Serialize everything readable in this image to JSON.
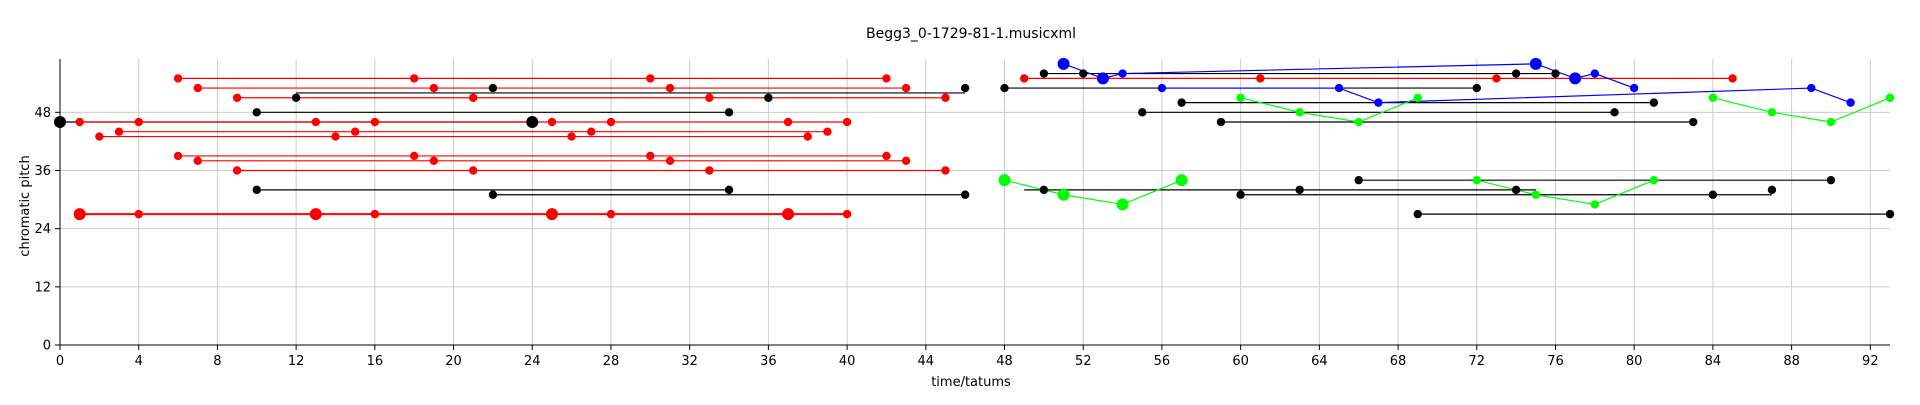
{
  "chart_data": {
    "type": "scatter",
    "title": "Begg3_0-1729-81-1.musicxml",
    "xlabel": "time/tatums",
    "ylabel": "chromatic pitch",
    "xlim": [
      0,
      93
    ],
    "ylim": [
      0,
      59
    ],
    "xticks": [
      0,
      4,
      8,
      12,
      16,
      20,
      24,
      28,
      32,
      36,
      40,
      44,
      48,
      52,
      56,
      60,
      64,
      68,
      72,
      76,
      80,
      84,
      88,
      92
    ],
    "yticks": [
      0,
      12,
      24,
      36,
      48
    ],
    "grid": true,
    "legend": "none",
    "colors": {
      "red": "#ff0000",
      "black": "#000000",
      "blue": "#0000ff",
      "green": "#00ff00",
      "grid": "#cccccc"
    },
    "series": [
      {
        "color": "red",
        "kind": "segment",
        "x": [
          6,
          42
        ],
        "y": [
          55,
          55
        ],
        "points": [
          {
            "x": 6,
            "y": 55,
            "s": 1
          },
          {
            "x": 18,
            "y": 55,
            "s": 1
          },
          {
            "x": 30,
            "y": 55,
            "s": 1
          },
          {
            "x": 42,
            "y": 55,
            "s": 1
          }
        ]
      },
      {
        "color": "red",
        "kind": "segment",
        "x": [
          7,
          43
        ],
        "y": [
          53,
          53
        ],
        "points": [
          {
            "x": 7,
            "y": 53,
            "s": 1
          },
          {
            "x": 19,
            "y": 53,
            "s": 1
          },
          {
            "x": 31,
            "y": 53,
            "s": 1
          },
          {
            "x": 43,
            "y": 53,
            "s": 1
          }
        ]
      },
      {
        "color": "red",
        "kind": "segment",
        "x": [
          9,
          45
        ],
        "y": [
          51,
          51
        ],
        "points": [
          {
            "x": 9,
            "y": 51,
            "s": 1
          },
          {
            "x": 21,
            "y": 51,
            "s": 1
          },
          {
            "x": 33,
            "y": 51,
            "s": 1
          },
          {
            "x": 45,
            "y": 51,
            "s": 1
          }
        ]
      },
      {
        "color": "black",
        "kind": "segment",
        "x": [
          12,
          46
        ],
        "y": [
          52,
          52
        ],
        "points": [
          {
            "x": 12,
            "y": 51,
            "s": 1
          },
          {
            "x": 22,
            "y": 53,
            "s": 1
          },
          {
            "x": 36,
            "y": 51,
            "s": 1
          },
          {
            "x": 46,
            "y": 53,
            "s": 1
          }
        ]
      },
      {
        "color": "black",
        "kind": "segment",
        "x": [
          10,
          34
        ],
        "y": [
          48,
          48
        ],
        "points": [
          {
            "x": 10,
            "y": 48,
            "s": 1
          },
          {
            "x": 34,
            "y": 48,
            "s": 1
          }
        ]
      },
      {
        "color": "black",
        "kind": "segment",
        "x": [
          0,
          24
        ],
        "y": [
          46,
          46
        ],
        "points": [
          {
            "x": 0,
            "y": 46,
            "s": 2
          },
          {
            "x": 24,
            "y": 46,
            "s": 2
          }
        ]
      },
      {
        "color": "red",
        "kind": "segment",
        "x": [
          1,
          40
        ],
        "y": [
          46,
          46
        ],
        "points": [
          {
            "x": 1,
            "y": 46,
            "s": 1
          },
          {
            "x": 4,
            "y": 46,
            "s": 1
          },
          {
            "x": 13,
            "y": 46,
            "s": 1
          },
          {
            "x": 16,
            "y": 46,
            "s": 1
          },
          {
            "x": 25,
            "y": 46,
            "s": 1
          },
          {
            "x": 28,
            "y": 46,
            "s": 1
          },
          {
            "x": 37,
            "y": 46,
            "s": 1
          },
          {
            "x": 40,
            "y": 46,
            "s": 1
          }
        ]
      },
      {
        "color": "red",
        "kind": "segment",
        "x": [
          3,
          39
        ],
        "y": [
          44,
          44
        ],
        "points": [
          {
            "x": 3,
            "y": 44,
            "s": 1
          },
          {
            "x": 15,
            "y": 44,
            "s": 1
          },
          {
            "x": 27,
            "y": 44,
            "s": 1
          },
          {
            "x": 39,
            "y": 44,
            "s": 1
          }
        ]
      },
      {
        "color": "red",
        "kind": "segment",
        "x": [
          2,
          38
        ],
        "y": [
          43,
          43
        ],
        "points": [
          {
            "x": 2,
            "y": 43,
            "s": 1
          },
          {
            "x": 14,
            "y": 43,
            "s": 1
          },
          {
            "x": 26,
            "y": 43,
            "s": 1
          },
          {
            "x": 38,
            "y": 43,
            "s": 1
          }
        ]
      },
      {
        "color": "red",
        "kind": "segment",
        "x": [
          6,
          42
        ],
        "y": [
          39,
          39
        ],
        "points": [
          {
            "x": 6,
            "y": 39,
            "s": 1
          },
          {
            "x": 18,
            "y": 39,
            "s": 1
          },
          {
            "x": 30,
            "y": 39,
            "s": 1
          },
          {
            "x": 42,
            "y": 39,
            "s": 1
          }
        ]
      },
      {
        "color": "red",
        "kind": "segment",
        "x": [
          7,
          43
        ],
        "y": [
          38,
          38
        ],
        "points": [
          {
            "x": 7,
            "y": 38,
            "s": 1
          },
          {
            "x": 19,
            "y": 38,
            "s": 1
          },
          {
            "x": 31,
            "y": 38,
            "s": 1
          },
          {
            "x": 43,
            "y": 38,
            "s": 1
          }
        ]
      },
      {
        "color": "red",
        "kind": "segment",
        "x": [
          9,
          45
        ],
        "y": [
          36,
          36
        ],
        "points": [
          {
            "x": 9,
            "y": 36,
            "s": 1
          },
          {
            "x": 21,
            "y": 36,
            "s": 1
          },
          {
            "x": 33,
            "y": 36,
            "s": 1
          },
          {
            "x": 45,
            "y": 36,
            "s": 1
          }
        ]
      },
      {
        "color": "black",
        "kind": "segment",
        "x": [
          10,
          34
        ],
        "y": [
          32,
          32
        ],
        "points": [
          {
            "x": 10,
            "y": 32,
            "s": 1
          },
          {
            "x": 34,
            "y": 32,
            "s": 1
          }
        ]
      },
      {
        "color": "black",
        "kind": "segment",
        "x": [
          22,
          46
        ],
        "y": [
          31,
          31
        ],
        "points": [
          {
            "x": 22,
            "y": 31,
            "s": 1
          },
          {
            "x": 46,
            "y": 31,
            "s": 1
          }
        ]
      },
      {
        "color": "red",
        "kind": "segment",
        "x": [
          1,
          40
        ],
        "y": [
          27,
          27
        ],
        "points": [
          {
            "x": 1,
            "y": 27,
            "s": 2
          },
          {
            "x": 4,
            "y": 27,
            "s": 1
          },
          {
            "x": 13,
            "y": 27,
            "s": 2
          },
          {
            "x": 16,
            "y": 27,
            "s": 1
          },
          {
            "x": 25,
            "y": 27,
            "s": 2
          },
          {
            "x": 28,
            "y": 27,
            "s": 1
          },
          {
            "x": 37,
            "y": 27,
            "s": 2
          },
          {
            "x": 40,
            "y": 27,
            "s": 1
          }
        ]
      },
      {
        "color": "black",
        "kind": "segment",
        "x": [
          48,
          72
        ],
        "y": [
          53,
          53
        ],
        "points": [
          {
            "x": 48,
            "y": 53,
            "s": 1
          },
          {
            "x": 72,
            "y": 53,
            "s": 1
          }
        ]
      },
      {
        "color": "black",
        "kind": "segment",
        "x": [
          50,
          76
        ],
        "y": [
          56,
          56
        ],
        "points": [
          {
            "x": 50,
            "y": 56,
            "s": 1
          },
          {
            "x": 52,
            "y": 56,
            "s": 1
          },
          {
            "x": 74,
            "y": 56,
            "s": 1
          },
          {
            "x": 76,
            "y": 56,
            "s": 1
          }
        ]
      },
      {
        "color": "red",
        "kind": "segment",
        "x": [
          49,
          85
        ],
        "y": [
          55,
          55
        ],
        "points": [
          {
            "x": 49,
            "y": 55,
            "s": 1
          },
          {
            "x": 61,
            "y": 55,
            "s": 1
          },
          {
            "x": 73,
            "y": 55,
            "s": 1
          },
          {
            "x": 85,
            "y": 55,
            "s": 1
          }
        ]
      },
      {
        "color": "black",
        "kind": "segment",
        "x": [
          57,
          81
        ],
        "y": [
          50,
          50
        ],
        "points": [
          {
            "x": 57,
            "y": 50,
            "s": 1
          },
          {
            "x": 81,
            "y": 50,
            "s": 1
          }
        ]
      },
      {
        "color": "black",
        "kind": "segment",
        "x": [
          55,
          79
        ],
        "y": [
          48,
          48
        ],
        "points": [
          {
            "x": 55,
            "y": 48,
            "s": 1
          },
          {
            "x": 79,
            "y": 48,
            "s": 1
          }
        ]
      },
      {
        "color": "black",
        "kind": "segment",
        "x": [
          59,
          83
        ],
        "y": [
          46,
          46
        ],
        "points": [
          {
            "x": 59,
            "y": 46,
            "s": 1
          },
          {
            "x": 83,
            "y": 46,
            "s": 1
          }
        ]
      },
      {
        "color": "black",
        "kind": "segment",
        "x": [
          49,
          75
        ],
        "y": [
          32,
          32
        ],
        "points": [
          {
            "x": 50,
            "y": 32,
            "s": 1
          },
          {
            "x": 63,
            "y": 32,
            "s": 1
          },
          {
            "x": 74,
            "y": 32,
            "s": 1
          }
        ]
      },
      {
        "color": "black",
        "kind": "segment",
        "x": [
          60,
          87
        ],
        "y": [
          31,
          31
        ],
        "points": [
          {
            "x": 60,
            "y": 31,
            "s": 1
          },
          {
            "x": 84,
            "y": 31,
            "s": 1
          },
          {
            "x": 87,
            "y": 32,
            "s": 1
          }
        ]
      },
      {
        "color": "black",
        "kind": "segment",
        "x": [
          66,
          90
        ],
        "y": [
          34,
          34
        ],
        "points": [
          {
            "x": 66,
            "y": 34,
            "s": 1
          },
          {
            "x": 90,
            "y": 34,
            "s": 1
          }
        ]
      },
      {
        "color": "black",
        "kind": "segment",
        "x": [
          69,
          93
        ],
        "y": [
          27,
          27
        ],
        "points": [
          {
            "x": 69,
            "y": 27,
            "s": 1
          },
          {
            "x": 93,
            "y": 27,
            "s": 1
          }
        ]
      },
      {
        "color": "blue",
        "kind": "polyline",
        "points": [
          {
            "x": 51,
            "y": 58,
            "s": 2
          },
          {
            "x": 53,
            "y": 55,
            "s": 2
          },
          {
            "x": 54,
            "y": 56,
            "s": 1
          },
          {
            "x": 75,
            "y": 58,
            "s": 2
          },
          {
            "x": 77,
            "y": 55,
            "s": 2
          },
          {
            "x": 78,
            "y": 56,
            "s": 1
          },
          {
            "x": 80,
            "y": 53,
            "s": 1
          }
        ]
      },
      {
        "color": "blue",
        "kind": "polyline",
        "points": [
          {
            "x": 56,
            "y": 53,
            "s": 1
          },
          {
            "x": 65,
            "y": 53,
            "s": 1
          },
          {
            "x": 67,
            "y": 50,
            "s": 1
          },
          {
            "x": 89,
            "y": 53,
            "s": 1
          },
          {
            "x": 91,
            "y": 50,
            "s": 1
          }
        ]
      },
      {
        "color": "green",
        "kind": "polyline",
        "points": [
          {
            "x": 48,
            "y": 34,
            "s": 2
          },
          {
            "x": 51,
            "y": 31,
            "s": 2
          },
          {
            "x": 54,
            "y": 29,
            "s": 2
          },
          {
            "x": 57,
            "y": 34,
            "s": 2
          }
        ]
      },
      {
        "color": "green",
        "kind": "polyline",
        "points": [
          {
            "x": 60,
            "y": 51,
            "s": 1
          },
          {
            "x": 63,
            "y": 48,
            "s": 1
          },
          {
            "x": 66,
            "y": 46,
            "s": 1
          },
          {
            "x": 69,
            "y": 51,
            "s": 1
          }
        ]
      },
      {
        "color": "green",
        "kind": "polyline",
        "points": [
          {
            "x": 72,
            "y": 34,
            "s": 1
          },
          {
            "x": 75,
            "y": 31,
            "s": 1
          },
          {
            "x": 78,
            "y": 29,
            "s": 1
          },
          {
            "x": 81,
            "y": 34,
            "s": 1
          }
        ]
      },
      {
        "color": "green",
        "kind": "polyline",
        "points": [
          {
            "x": 84,
            "y": 51,
            "s": 1
          },
          {
            "x": 87,
            "y": 48,
            "s": 1
          },
          {
            "x": 90,
            "y": 46,
            "s": 1
          },
          {
            "x": 93,
            "y": 51,
            "s": 1
          }
        ]
      }
    ]
  }
}
